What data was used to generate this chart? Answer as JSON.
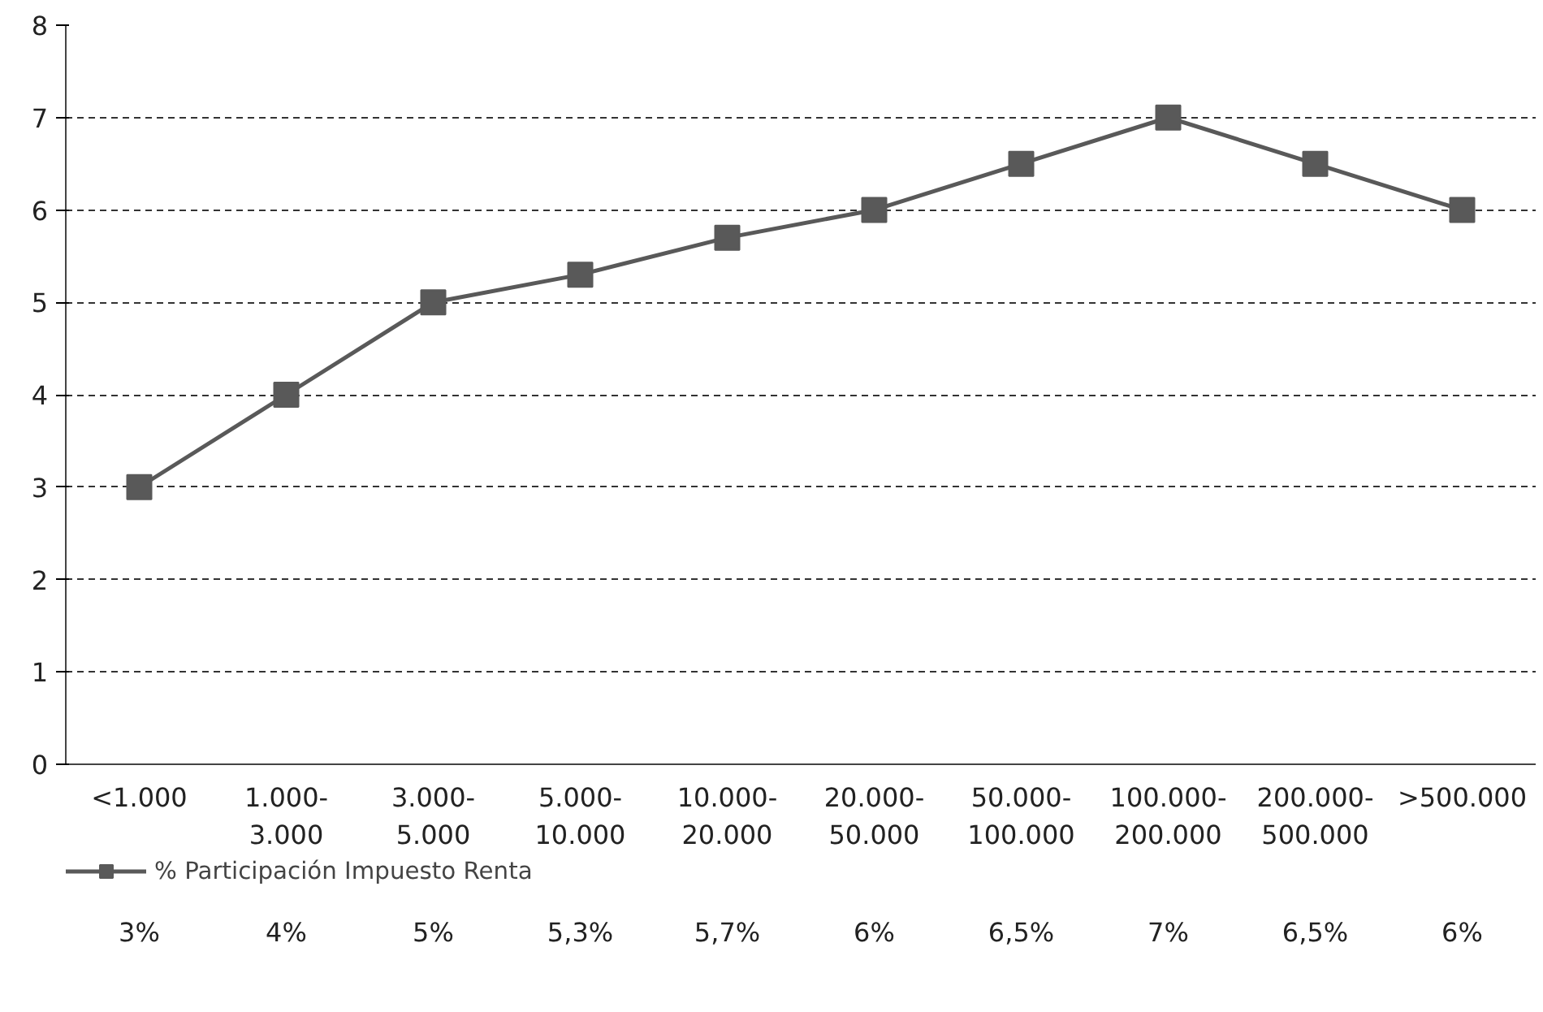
{
  "chart_data": {
    "type": "line",
    "categories": [
      "<1.000",
      "1.000-3.000",
      "3.000-5.000",
      "5.000-10.000",
      "10.000-20.000",
      "20.000-50.000",
      "50.000-100.000",
      "100.000-200.000",
      "200.000-500.000",
      ">500.000"
    ],
    "series": [
      {
        "name": "% Participación Impuesto Renta",
        "color": "#595959",
        "values": [
          3,
          4,
          5,
          5.3,
          5.7,
          6,
          6.5,
          7,
          6.5,
          6
        ],
        "value_labels": [
          "3%",
          "4%",
          "5%",
          "5,3%",
          "5,7%",
          "6%",
          "6,5%",
          "7%",
          "6,5%",
          "6%"
        ]
      }
    ],
    "ylim": [
      0,
      8
    ],
    "yticks": [
      0,
      1,
      2,
      3,
      4,
      5,
      6,
      7,
      8
    ],
    "grid": "y",
    "legend": "bottom",
    "marker": "square",
    "line_style": "solid"
  }
}
